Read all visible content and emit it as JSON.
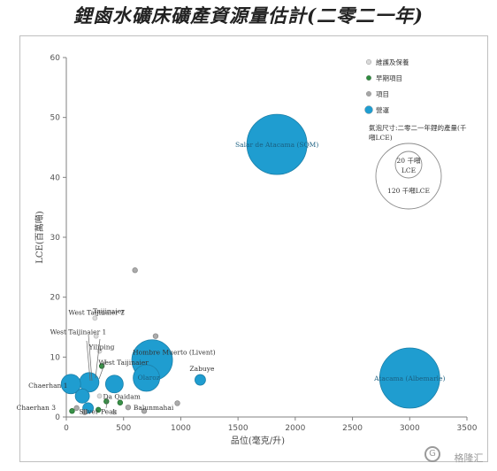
{
  "title": "鋰鹵水礦床礦產資源量估計(二零二一年)",
  "watermark": "格隆汇",
  "chart_data": {
    "type": "scatter",
    "title": "鋰鹵水礦床礦產資源量估計(二零二一年)",
    "xlabel": "品位(毫克/升)",
    "ylabel": "LCE(百萬噸)",
    "xlim": [
      0,
      3500
    ],
    "ylim": [
      0,
      60
    ],
    "xticks": [
      0,
      500,
      1000,
      1500,
      2000,
      2500,
      3000,
      3500
    ],
    "yticks": [
      0,
      10,
      20,
      30,
      40,
      50,
      60
    ],
    "grid": false,
    "legend_position": "top-right",
    "legend": [
      {
        "label": "維護及保養",
        "color": "#d9d9d9"
      },
      {
        "label": "早期項目",
        "color": "#2e8b3e"
      },
      {
        "label": "項目",
        "color": "#a6a6a6"
      },
      {
        "label": "營運",
        "color": "#1f9dd0"
      }
    ],
    "size_legend": {
      "title": "氣泡尺寸:二零二一年鋰的產量(千噸LCE)",
      "small_label": "20 千噸 LCE",
      "large_label": "120 千噸LCE"
    },
    "bubble_color": "#1f9dd0",
    "series": [
      {
        "name": "營運",
        "points": [
          {
            "x": 1840,
            "y": 45.5,
            "label": "Salar de Atacama (SQM)"
          },
          {
            "x": 3000,
            "y": 6.5,
            "label": "Atacama (Albemarle)"
          },
          {
            "x": 750,
            "y": 9.5,
            "label": "Hombre Muerto (Livent)"
          },
          {
            "x": 700,
            "y": 6.5,
            "label": "Olaroz"
          },
          {
            "x": 1170,
            "y": 6.2,
            "label": "Zabuye"
          },
          {
            "x": 200,
            "y": 5.8,
            "label": "Taijinaier"
          },
          {
            "x": 420,
            "y": 5.5,
            "label": "West Taijinaier"
          },
          {
            "x": 40,
            "y": 5.5,
            "label": "Chaerhan 1"
          },
          {
            "x": 140,
            "y": 3.5,
            "label": ""
          },
          {
            "x": 190,
            "y": 1.5,
            "label": ""
          }
        ]
      },
      {
        "name": "早期項目",
        "points": [
          {
            "x": 310,
            "y": 8.5,
            "label": ""
          },
          {
            "x": 350,
            "y": 2.6,
            "label": ""
          },
          {
            "x": 470,
            "y": 2.4,
            "label": ""
          },
          {
            "x": 280,
            "y": 1.2,
            "label": ""
          },
          {
            "x": 50,
            "y": 1.0,
            "label": ""
          }
        ]
      },
      {
        "name": "項目",
        "points": [
          {
            "x": 600,
            "y": 24.5,
            "label": ""
          },
          {
            "x": 780,
            "y": 13.5,
            "label": ""
          },
          {
            "x": 970,
            "y": 2.3,
            "label": ""
          },
          {
            "x": 680,
            "y": 1.0,
            "label": ""
          },
          {
            "x": 540,
            "y": 1.6,
            "label": "Balunmahai"
          },
          {
            "x": 90,
            "y": 1.5,
            "label": "Chaerhan 3"
          },
          {
            "x": 160,
            "y": 0.8,
            "label": ""
          }
        ]
      },
      {
        "name": "維護及保養",
        "points": [
          {
            "x": 420,
            "y": 0.8,
            "label": "Silver Peak"
          },
          {
            "x": 250,
            "y": 16.5,
            "label": "West Taijinaier 2"
          },
          {
            "x": 260,
            "y": 13.5,
            "label": "West Taijinaier 1"
          },
          {
            "x": 290,
            "y": 11.0,
            "label": "Yiliping"
          },
          {
            "x": 290,
            "y": 3.5,
            "label": "Da Qaidam"
          }
        ]
      }
    ]
  }
}
